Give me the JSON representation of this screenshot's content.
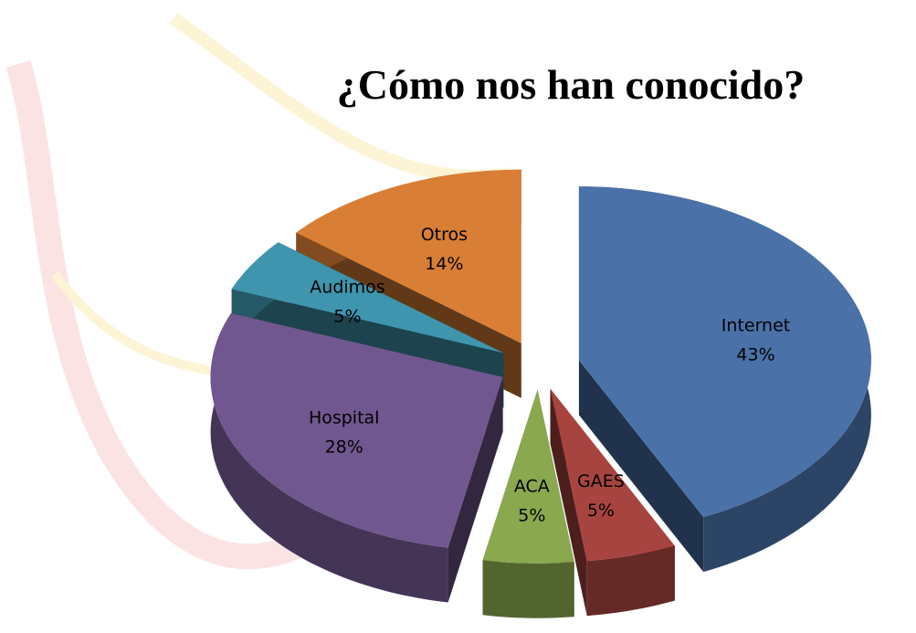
{
  "chart_data": {
    "type": "pie3d",
    "title": "¿Cómo nos han conocido?",
    "categories": [
      "Internet",
      "GAES",
      "ACA",
      "Hospital",
      "Audimos",
      "Otros"
    ],
    "values": [
      43,
      5,
      5,
      28,
      5,
      14
    ],
    "value_labels": [
      "43%",
      "5%",
      "5%",
      "28%",
      "5%",
      "14%"
    ],
    "colors": [
      "#4a72a8",
      "#a84440",
      "#8aa84e",
      "#71578f",
      "#3e95ad",
      "#d97e35"
    ]
  }
}
